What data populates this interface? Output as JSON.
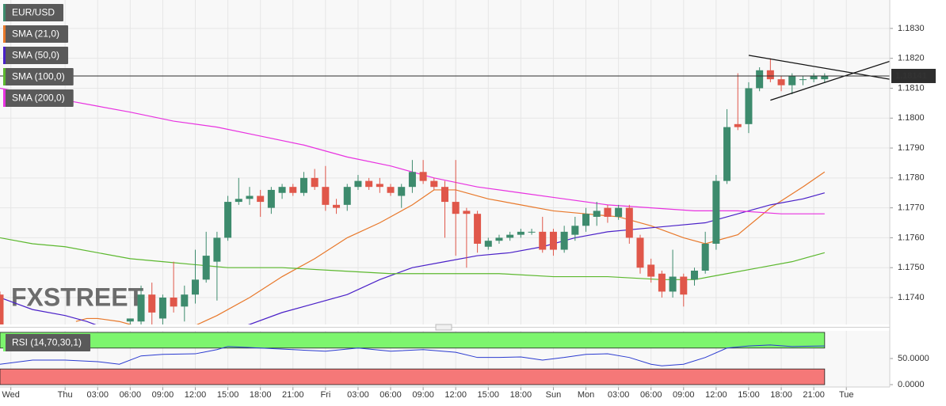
{
  "chart_data": [
    {
      "type": "candlestick",
      "name": "EUR/USD",
      "up_color": "#3d8b6d",
      "down_color": "#e0574a",
      "x": [
        -6,
        6,
        7,
        8,
        9,
        10,
        11,
        12,
        13,
        14,
        15,
        16,
        17,
        18,
        19,
        20,
        21,
        22,
        23,
        24,
        25,
        26,
        27,
        28,
        29,
        30,
        31,
        32,
        33,
        34,
        35,
        36,
        37,
        38,
        39,
        40,
        41,
        42,
        43,
        44,
        45,
        46,
        47,
        48,
        49,
        50,
        51,
        52,
        53,
        54,
        55,
        56,
        57,
        58,
        59,
        60,
        61,
        62,
        63,
        64,
        65,
        66,
        67,
        68,
        69,
        70
      ],
      "open": [
        1.1741,
        1.1732,
        1.1732,
        1.1741,
        1.1733,
        1.174,
        1.1737,
        1.1741,
        1.1746,
        1.1752,
        1.176,
        1.1772,
        1.1773,
        1.1774,
        1.177,
        1.1775,
        1.1777,
        1.1775,
        1.178,
        1.1777,
        1.1771,
        1.1771,
        1.1777,
        1.1779,
        1.1778,
        1.1777,
        1.1774,
        1.1777,
        1.1782,
        1.1779,
        1.1777,
        1.1772,
        1.1769,
        1.1768,
        1.1757,
        1.1759,
        1.176,
        1.1761,
        1.1762,
        1.1762,
        1.1762,
        1.1756,
        1.1761,
        1.1764,
        1.1767,
        1.177,
        1.1767,
        1.177,
        1.176,
        1.1751,
        1.1748,
        1.1742,
        1.1747,
        1.1746,
        1.1749,
        1.1758,
        1.1779,
        1.1798,
        1.1798,
        1.181,
        1.1816,
        1.1813,
        1.1811,
        1.1813,
        1.1813,
        1.1813
      ],
      "high": [
        1.1742,
        1.1733,
        1.1744,
        1.1745,
        1.1741,
        1.1752,
        1.1744,
        1.1756,
        1.1762,
        1.1762,
        1.1774,
        1.178,
        1.1777,
        1.1776,
        1.1777,
        1.1778,
        1.1778,
        1.1782,
        1.1783,
        1.1784,
        1.1773,
        1.1778,
        1.1781,
        1.178,
        1.178,
        1.1778,
        1.1778,
        1.1786,
        1.1786,
        1.178,
        1.1779,
        1.1786,
        1.177,
        1.1769,
        1.176,
        1.1761,
        1.1762,
        1.1763,
        1.1763,
        1.1767,
        1.1763,
        1.1764,
        1.1767,
        1.177,
        1.1772,
        1.1771,
        1.1771,
        1.1771,
        1.1761,
        1.1753,
        1.1749,
        1.1756,
        1.1748,
        1.175,
        1.1762,
        1.1781,
        1.1803,
        1.1815,
        1.1812,
        1.1817,
        1.182,
        1.1814,
        1.1815,
        1.1814,
        1.1815,
        1.1815
      ],
      "low": [
        1.1731,
        1.1731,
        1.1731,
        1.1731,
        1.1731,
        1.1735,
        1.1732,
        1.1738,
        1.1745,
        1.1739,
        1.1759,
        1.1771,
        1.1771,
        1.1767,
        1.1768,
        1.1773,
        1.1774,
        1.1774,
        1.1776,
        1.1769,
        1.1768,
        1.1769,
        1.1776,
        1.1776,
        1.1775,
        1.1774,
        1.177,
        1.1775,
        1.1778,
        1.1776,
        1.176,
        1.1754,
        1.175,
        1.1755,
        1.1756,
        1.1758,
        1.1759,
        1.176,
        1.1761,
        1.1755,
        1.1754,
        1.1755,
        1.1759,
        1.1762,
        1.1764,
        1.1765,
        1.1766,
        1.1758,
        1.1748,
        1.1745,
        1.174,
        1.174,
        1.1737,
        1.1744,
        1.1748,
        1.1756,
        1.1778,
        1.1796,
        1.1795,
        1.1809,
        1.1812,
        1.1809,
        1.1808,
        1.1811,
        1.1812,
        1.1812
      ],
      "close": [
        1.1731,
        1.1733,
        1.1741,
        1.1735,
        1.174,
        1.1737,
        1.1741,
        1.1746,
        1.1754,
        1.176,
        1.1772,
        1.1773,
        1.1774,
        1.1772,
        1.1776,
        1.1777,
        1.1775,
        1.178,
        1.1777,
        1.1771,
        1.177,
        1.1777,
        1.1779,
        1.1777,
        1.1777,
        1.1775,
        1.1777,
        1.1782,
        1.1779,
        1.1777,
        1.1772,
        1.1768,
        1.1768,
        1.1758,
        1.1759,
        1.176,
        1.1761,
        1.1762,
        1.1762,
        1.1756,
        1.1756,
        1.1762,
        1.1764,
        1.1768,
        1.1769,
        1.1767,
        1.177,
        1.176,
        1.175,
        1.1747,
        1.1742,
        1.1747,
        1.1741,
        1.1749,
        1.1758,
        1.1779,
        1.1797,
        1.1797,
        1.181,
        1.1816,
        1.1813,
        1.1811,
        1.1814,
        1.1813,
        1.1814,
        1.18141
      ],
      "series": [
        {
          "name": "SMA (21,0)",
          "color": "#e8782a",
          "x": [
            1,
            2,
            3,
            5,
            8,
            11,
            14,
            17,
            20,
            23,
            26,
            29,
            32,
            34,
            36,
            39,
            42,
            45,
            48,
            51,
            54,
            57,
            59,
            62,
            65,
            68,
            70
          ],
          "values": [
            1.1732,
            1.1733,
            1.1733,
            1.1732,
            1.1729,
            1.1729,
            1.1734,
            1.174,
            1.1747,
            1.1753,
            1.176,
            1.1765,
            1.1771,
            1.1776,
            1.1776,
            1.1773,
            1.1771,
            1.1769,
            1.1768,
            1.1767,
            1.1764,
            1.176,
            1.1758,
            1.1761,
            1.177,
            1.1777,
            1.1782
          ]
        },
        {
          "name": "SMA (50,0)",
          "color": "#4a20c8",
          "x": [
            -6,
            -3,
            0,
            2,
            5,
            10,
            14,
            17,
            20,
            23,
            26,
            29,
            32,
            35,
            38,
            41,
            44,
            47,
            50,
            53,
            56,
            59,
            62,
            65,
            68,
            70
          ],
          "values": [
            1.174,
            1.1736,
            1.1734,
            1.1732,
            1.1728,
            1.1726,
            1.1728,
            1.1731,
            1.1735,
            1.1738,
            1.1741,
            1.1746,
            1.175,
            1.1752,
            1.1754,
            1.1755,
            1.1757,
            1.176,
            1.1762,
            1.1763,
            1.1764,
            1.1765,
            1.1768,
            1.1771,
            1.1773,
            1.1775
          ]
        },
        {
          "name": "SMA (100,0)",
          "color": "#5cb82e",
          "x": [
            -6,
            -3,
            0,
            3,
            6,
            9,
            12,
            15,
            20,
            25,
            30,
            35,
            40,
            45,
            50,
            55,
            58,
            61,
            64,
            67,
            70
          ],
          "values": [
            1.176,
            1.1758,
            1.1757,
            1.1755,
            1.1753,
            1.1752,
            1.1751,
            1.175,
            1.175,
            1.1749,
            1.1748,
            1.1748,
            1.1748,
            1.1747,
            1.1747,
            1.1746,
            1.1746,
            1.1748,
            1.175,
            1.1752,
            1.1755
          ]
        },
        {
          "name": "SMA (200,0)",
          "color": "#e832e0",
          "x": [
            -6,
            -3,
            0,
            3,
            6,
            10,
            14,
            18,
            22,
            26,
            30,
            34,
            38,
            42,
            46,
            50,
            54,
            58,
            62,
            66,
            70
          ],
          "values": [
            1.181,
            1.1808,
            1.1806,
            1.1804,
            1.1802,
            1.1799,
            1.1797,
            1.1794,
            1.1791,
            1.1787,
            1.1784,
            1.178,
            1.1777,
            1.1775,
            1.1773,
            1.1771,
            1.177,
            1.1769,
            1.1769,
            1.1768,
            1.1768
          ]
        }
      ],
      "trendlines": [
        {
          "x": [
            63,
            76
          ],
          "values": [
            1.1821,
            1.1813
          ]
        },
        {
          "x": [
            65,
            76
          ],
          "values": [
            1.1806,
            1.1819
          ]
        }
      ],
      "trendline_color": "#111111",
      "last_price": 1.18141,
      "last_price_color": "#2e2e2e",
      "xlim": [
        -6,
        76
      ],
      "ylim": [
        1.1731,
        1.18395
      ],
      "yticks": [
        {
          "value": 1.174,
          "label": "1.1740"
        },
        {
          "value": 1.175,
          "label": "1.1750"
        },
        {
          "value": 1.176,
          "label": "1.1760"
        },
        {
          "value": 1.177,
          "label": "1.1770"
        },
        {
          "value": 1.178,
          "label": "1.1780"
        },
        {
          "value": 1.179,
          "label": "1.1790"
        },
        {
          "value": 1.18,
          "label": "1.1800"
        },
        {
          "value": 1.181,
          "label": "1.1810"
        },
        {
          "value": 1.182,
          "label": "1.1820"
        },
        {
          "value": 1.183,
          "label": "1.1830"
        }
      ],
      "grid": true,
      "watermark": [
        "FX",
        "STREET"
      ]
    },
    {
      "type": "line",
      "series": [
        {
          "name": "RSI (14,70,30,1)",
          "color": "#2a3ad0",
          "x": [
            -6,
            -3,
            0,
            3,
            5,
            7,
            9,
            12,
            14,
            15,
            18,
            21,
            24,
            27,
            30,
            33,
            36,
            38,
            40,
            42,
            44,
            46,
            48,
            50,
            52,
            54,
            55,
            57,
            59,
            61,
            63,
            65,
            67,
            70
          ],
          "values": [
            39,
            47,
            47,
            44,
            39,
            55,
            58,
            59,
            67,
            73,
            70,
            67,
            64,
            70,
            64,
            67,
            62,
            52,
            52,
            53,
            47,
            52,
            58,
            59,
            52,
            39,
            36,
            39,
            52,
            70,
            74,
            76,
            73,
            74
          ]
        }
      ],
      "bands": [
        {
          "from": 70,
          "to": 100,
          "color": "#7df56e"
        },
        {
          "from": 0,
          "to": 30,
          "color": "#f57878"
        }
      ],
      "xlim": [
        -6,
        76
      ],
      "ylim": [
        0,
        100
      ],
      "yticks": [
        {
          "value": 50,
          "label": "50.0000"
        },
        {
          "value": 0,
          "label": "0.0000"
        }
      ],
      "xticks": [
        {
          "value": -5,
          "label": "Wed"
        },
        {
          "value": 0,
          "label": "Thu"
        },
        {
          "value": 3,
          "label": "03:00"
        },
        {
          "value": 6,
          "label": "06:00"
        },
        {
          "value": 9,
          "label": "09:00"
        },
        {
          "value": 12,
          "label": "12:00"
        },
        {
          "value": 15,
          "label": "15:00"
        },
        {
          "value": 18,
          "label": "18:00"
        },
        {
          "value": 21,
          "label": "21:00"
        },
        {
          "value": 24,
          "label": "Fri"
        },
        {
          "value": 27,
          "label": "03:00"
        },
        {
          "value": 30,
          "label": "06:00"
        },
        {
          "value": 33,
          "label": "09:00"
        },
        {
          "value": 36,
          "label": "12:00"
        },
        {
          "value": 39,
          "label": "15:00"
        },
        {
          "value": 42,
          "label": "18:00"
        },
        {
          "value": 45,
          "label": "Sun"
        },
        {
          "value": 48,
          "label": "Mon"
        },
        {
          "value": 51,
          "label": "03:00"
        },
        {
          "value": 54,
          "label": "06:00"
        },
        {
          "value": 57,
          "label": "09:00"
        },
        {
          "value": 60,
          "label": "12:00"
        },
        {
          "value": 63,
          "label": "15:00"
        },
        {
          "value": 66,
          "label": "18:00"
        },
        {
          "value": 69,
          "label": "21:00"
        },
        {
          "value": 72,
          "label": "Tue"
        }
      ]
    }
  ]
}
